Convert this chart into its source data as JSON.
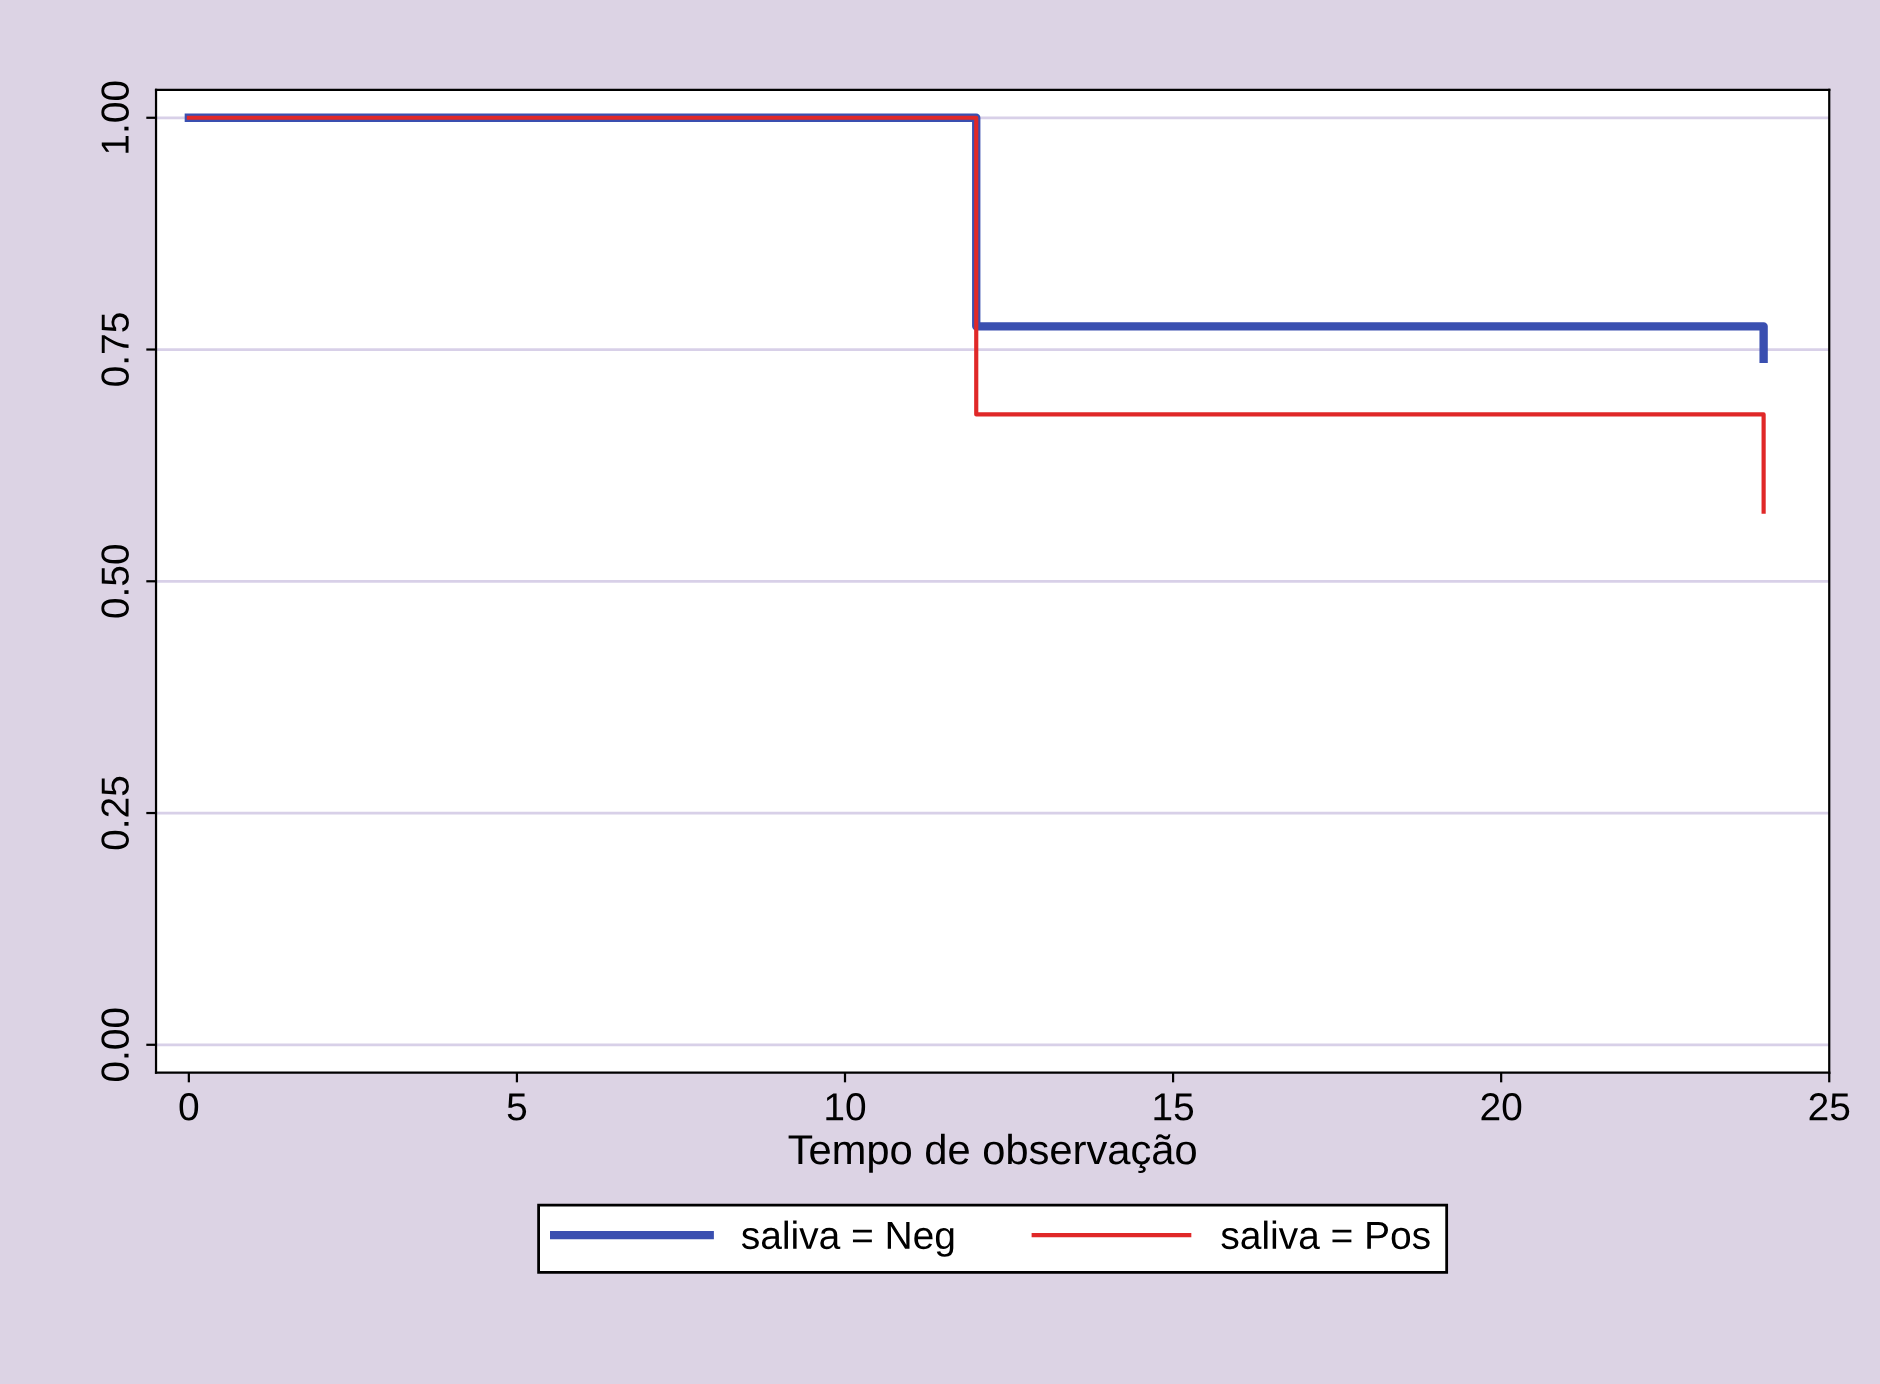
{
  "chart_data": {
    "type": "step",
    "xlabel": "Tempo de observação",
    "series": [
      {
        "name": "saliva = Neg",
        "color": "#3a4fb0",
        "x": [
          0,
          12,
          24,
          24
        ],
        "values": [
          1.0,
          0.775,
          0.775,
          0.74
        ]
      },
      {
        "name": "saliva = Pos",
        "color": "#e02828",
        "x": [
          0,
          12,
          24,
          24
        ],
        "values": [
          1.0,
          0.68,
          0.68,
          0.575
        ]
      }
    ],
    "xlim": [
      -0.5,
      25
    ],
    "xticks": [
      0,
      5,
      10,
      15,
      20,
      25
    ],
    "ylim": [
      -0.03,
      1.03
    ],
    "yticks": [
      {
        "value": 0,
        "label": "0.00"
      },
      {
        "value": 0.25,
        "label": "0.25"
      },
      {
        "value": 0.5,
        "label": "0.50"
      },
      {
        "value": 0.75,
        "label": "0.75"
      },
      {
        "value": 1,
        "label": "1.00"
      }
    ],
    "grid": "y",
    "legend": "bottom"
  }
}
